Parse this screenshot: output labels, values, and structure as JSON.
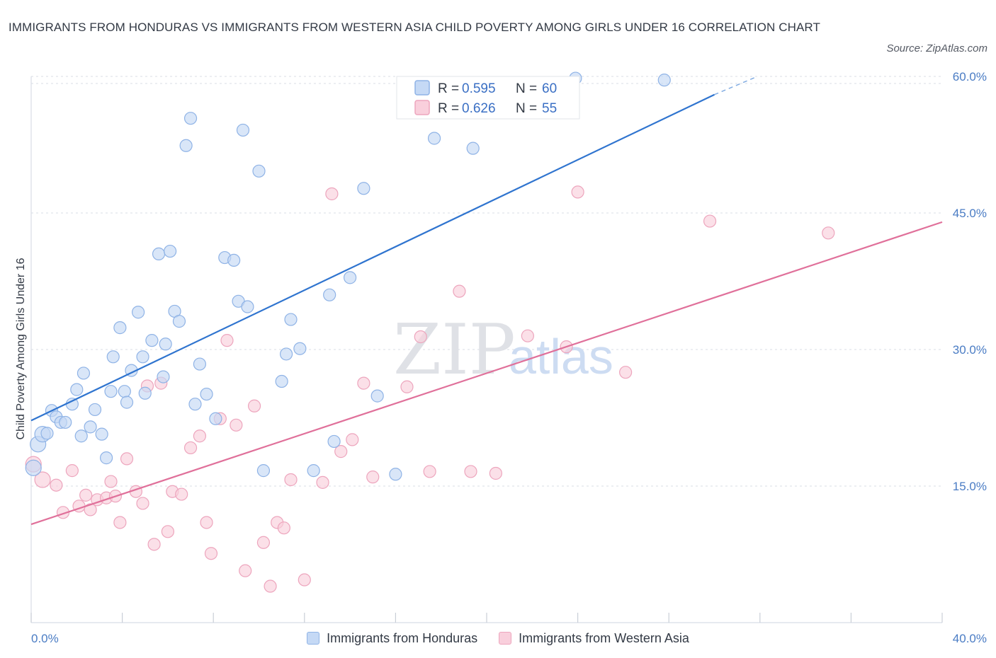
{
  "title": "IMMIGRANTS FROM HONDURAS VS IMMIGRANTS FROM WESTERN ASIA CHILD POVERTY AMONG GIRLS UNDER 16 CORRELATION CHART",
  "source": "Source: ZipAtlas.com",
  "watermark": {
    "zip": "ZIP",
    "atlas": "atlas"
  },
  "legend": {
    "r_label": "R = ",
    "n_label": "N = ",
    "series": [
      {
        "r": "0.595",
        "n": "60"
      },
      {
        "r": "0.626",
        "n": "55"
      }
    ]
  },
  "bottom_legend": [
    "Immigrants from Honduras",
    "Immigrants from Western Asia"
  ],
  "colors": {
    "blue_fill": "#c5d9f5",
    "blue_stroke": "#8fb3e6",
    "blue_line": "#2f74cf",
    "pink_fill": "#f9cfdc",
    "pink_stroke": "#eda5bd",
    "pink_line": "#e0709a",
    "tick_text": "#4a7cc4",
    "grid": "#d8dde6"
  },
  "chart_data": {
    "type": "scatter",
    "title": "IMMIGRANTS FROM HONDURAS VS IMMIGRANTS FROM WESTERN ASIA CHILD POVERTY AMONG GIRLS UNDER 16 CORRELATION CHART",
    "xlabel": "",
    "ylabel": "Child Poverty Among Girls Under 16",
    "xlim": [
      0,
      40
    ],
    "ylim": [
      0,
      60
    ],
    "x_tick_labels": [
      "0.0%",
      "40.0%"
    ],
    "y_ticks": [
      15,
      30,
      45,
      60
    ],
    "y_tick_labels": [
      "15.0%",
      "30.0%",
      "45.0%",
      "60.0%"
    ],
    "series": [
      {
        "name": "Immigrants from Honduras",
        "r": 0.595,
        "n": 60,
        "trend": {
          "x": [
            0,
            30.0
          ],
          "y": [
            22.2,
            58.0
          ],
          "dashed_to": [
            31.8,
            59.9
          ]
        },
        "points": [
          [
            0.1,
            17.0
          ],
          [
            0.3,
            19.6
          ],
          [
            0.5,
            20.7
          ],
          [
            0.7,
            20.8
          ],
          [
            0.9,
            23.3
          ],
          [
            1.1,
            22.6
          ],
          [
            1.3,
            22.0
          ],
          [
            1.5,
            22.0
          ],
          [
            1.8,
            24.0
          ],
          [
            2.0,
            25.6
          ],
          [
            2.2,
            20.5
          ],
          [
            2.3,
            27.4
          ],
          [
            2.6,
            21.5
          ],
          [
            2.8,
            23.4
          ],
          [
            3.1,
            20.7
          ],
          [
            3.3,
            18.1
          ],
          [
            3.5,
            25.4
          ],
          [
            3.6,
            29.2
          ],
          [
            3.9,
            32.4
          ],
          [
            4.1,
            25.4
          ],
          [
            4.2,
            24.2
          ],
          [
            4.4,
            27.7
          ],
          [
            4.7,
            34.1
          ],
          [
            4.9,
            29.2
          ],
          [
            5.0,
            25.2
          ],
          [
            5.3,
            31.0
          ],
          [
            5.6,
            40.5
          ],
          [
            5.8,
            27.0
          ],
          [
            5.9,
            30.6
          ],
          [
            6.1,
            40.8
          ],
          [
            6.3,
            34.2
          ],
          [
            6.5,
            33.1
          ],
          [
            6.8,
            52.4
          ],
          [
            7.0,
            55.4
          ],
          [
            7.2,
            24.0
          ],
          [
            7.4,
            28.4
          ],
          [
            7.7,
            25.1
          ],
          [
            8.1,
            22.4
          ],
          [
            8.5,
            40.1
          ],
          [
            8.9,
            39.8
          ],
          [
            9.1,
            35.3
          ],
          [
            9.5,
            34.7
          ],
          [
            9.3,
            54.1
          ],
          [
            10.0,
            49.6
          ],
          [
            10.2,
            16.7
          ],
          [
            11.0,
            26.5
          ],
          [
            11.2,
            29.5
          ],
          [
            11.4,
            33.3
          ],
          [
            11.8,
            30.1
          ],
          [
            12.4,
            16.7
          ],
          [
            13.1,
            36.0
          ],
          [
            13.3,
            19.9
          ],
          [
            14.0,
            37.9
          ],
          [
            14.6,
            47.7
          ],
          [
            15.2,
            24.9
          ],
          [
            16.0,
            16.3
          ],
          [
            17.7,
            53.2
          ],
          [
            19.4,
            52.1
          ],
          [
            23.9,
            59.8
          ],
          [
            27.8,
            59.6
          ]
        ]
      },
      {
        "name": "Immigrants from Western Asia",
        "r": 0.626,
        "n": 55,
        "trend": {
          "x": [
            0,
            40
          ],
          "y": [
            10.8,
            44.0
          ]
        },
        "points": [
          [
            0.1,
            17.4
          ],
          [
            0.5,
            15.7
          ],
          [
            1.1,
            15.1
          ],
          [
            1.4,
            12.1
          ],
          [
            1.8,
            16.7
          ],
          [
            2.1,
            12.8
          ],
          [
            2.4,
            14.0
          ],
          [
            2.6,
            12.4
          ],
          [
            2.9,
            13.5
          ],
          [
            3.3,
            13.7
          ],
          [
            3.5,
            15.5
          ],
          [
            3.7,
            13.9
          ],
          [
            3.9,
            11.0
          ],
          [
            4.2,
            18.0
          ],
          [
            4.6,
            14.4
          ],
          [
            4.9,
            13.1
          ],
          [
            5.1,
            26.0
          ],
          [
            5.4,
            8.6
          ],
          [
            5.7,
            26.3
          ],
          [
            6.0,
            10.0
          ],
          [
            6.2,
            14.4
          ],
          [
            6.6,
            14.1
          ],
          [
            7.0,
            19.2
          ],
          [
            7.4,
            20.5
          ],
          [
            7.7,
            11.0
          ],
          [
            7.9,
            7.6
          ],
          [
            8.3,
            22.4
          ],
          [
            8.6,
            31.0
          ],
          [
            9.0,
            21.7
          ],
          [
            9.4,
            5.7
          ],
          [
            9.8,
            23.8
          ],
          [
            10.2,
            8.8
          ],
          [
            10.5,
            4.0
          ],
          [
            10.8,
            11.0
          ],
          [
            11.1,
            10.4
          ],
          [
            11.4,
            15.7
          ],
          [
            12.0,
            4.7
          ],
          [
            12.8,
            15.4
          ],
          [
            13.2,
            47.1
          ],
          [
            13.6,
            18.8
          ],
          [
            14.1,
            20.1
          ],
          [
            14.6,
            26.3
          ],
          [
            15.0,
            16.0
          ],
          [
            16.5,
            25.9
          ],
          [
            17.1,
            31.4
          ],
          [
            17.5,
            16.6
          ],
          [
            18.8,
            36.4
          ],
          [
            19.3,
            16.6
          ],
          [
            20.4,
            16.4
          ],
          [
            21.8,
            31.5
          ],
          [
            23.5,
            30.3
          ],
          [
            24.0,
            47.3
          ],
          [
            26.1,
            27.5
          ],
          [
            29.8,
            44.1
          ],
          [
            35.0,
            42.8
          ]
        ]
      }
    ]
  }
}
